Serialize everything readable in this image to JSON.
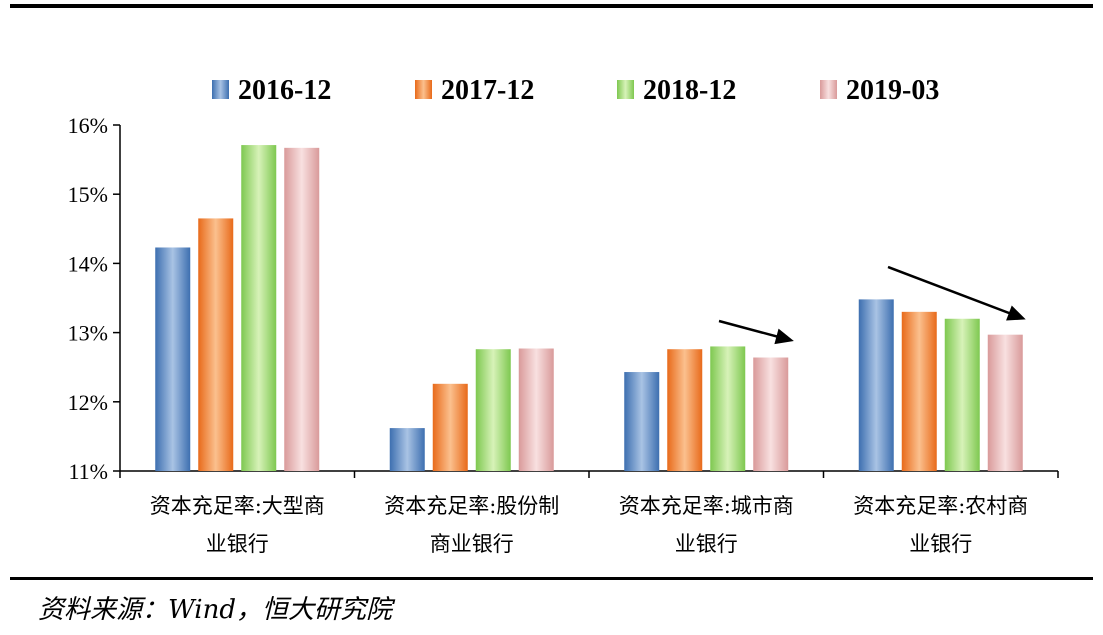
{
  "source": "资料来源：Wind，恒大研究院",
  "chart_data": {
    "type": "bar",
    "categories": [
      [
        "资本充足率:大型商",
        "业银行"
      ],
      [
        "资本充足率:股份制",
        "商业银行"
      ],
      [
        "资本充足率:城市商",
        "业银行"
      ],
      [
        "资本充足率:农村商",
        "业银行"
      ]
    ],
    "series": [
      {
        "name": "2016-12",
        "values": [
          14.23,
          11.62,
          12.43,
          13.48
        ],
        "color_top": "#3d6fb0",
        "color_mid": "#a9c3e4"
      },
      {
        "name": "2017-12",
        "values": [
          14.65,
          12.26,
          12.76,
          13.3
        ],
        "color_top": "#e86a1a",
        "color_mid": "#fbc08e"
      },
      {
        "name": "2018-12",
        "values": [
          15.71,
          12.76,
          12.8,
          13.2
        ],
        "color_top": "#7ec850",
        "color_mid": "#d7f2b8"
      },
      {
        "name": "2019-03",
        "values": [
          15.67,
          12.77,
          12.64,
          12.97
        ],
        "color_top": "#d99a9a",
        "color_mid": "#f8e0e0"
      }
    ],
    "ylim": [
      11,
      16
    ],
    "yticks": [
      "11%",
      "12%",
      "13%",
      "14%",
      "15%",
      "16%"
    ],
    "legend_position": "top",
    "grid": false,
    "annotations": [
      "downward trend arrow over 资本充足率:城市商业银行",
      "downward trend arrow over 资本充足率:农村商业银行"
    ]
  }
}
